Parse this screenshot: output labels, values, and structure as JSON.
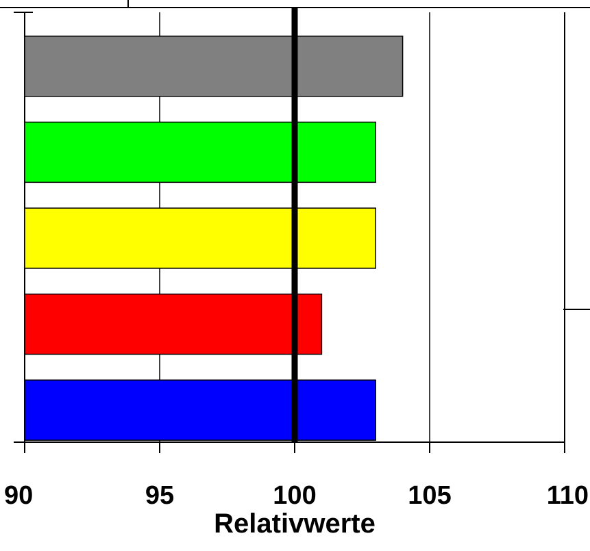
{
  "chart_data": {
    "type": "bar",
    "orientation": "horizontal",
    "title": "",
    "xlabel": "Relativwerte",
    "ylabel": "",
    "xlim": [
      90,
      110
    ],
    "x_ticks": [
      90,
      95,
      100,
      105,
      110
    ],
    "x_tick_labels": [
      "90",
      "95",
      "100",
      "105",
      "110"
    ],
    "grid": "vertical",
    "reference_line": {
      "value": 100,
      "color": "#000000"
    },
    "bars": [
      {
        "value": 104,
        "color": "#808080"
      },
      {
        "value": 103,
        "color": "#00ff00"
      },
      {
        "value": 103,
        "color": "#ffff00"
      },
      {
        "value": 101,
        "color": "#ff0000"
      },
      {
        "value": 103,
        "color": "#0000ff"
      }
    ]
  }
}
